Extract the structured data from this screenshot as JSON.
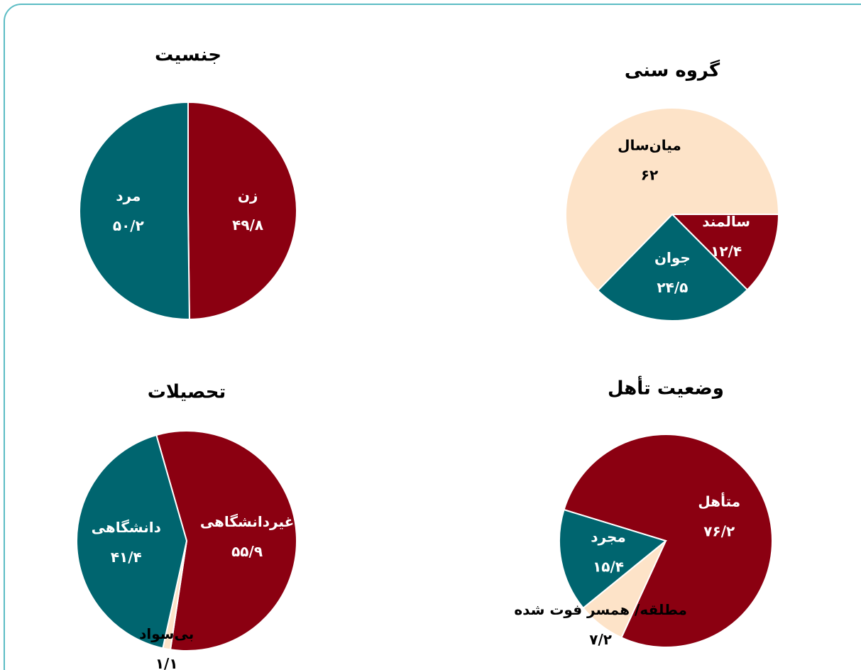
{
  "chart_data": [
    {
      "type": "pie",
      "title": "جنسیت",
      "categories": [
        "زن",
        "مرد"
      ],
      "values": [
        49.8,
        50.2
      ],
      "value_labels": [
        "۴۹/۸",
        "۵۰/۲"
      ],
      "colors": [
        "#8b0011",
        "#00656f"
      ]
    },
    {
      "type": "pie",
      "title": "گروه سنی",
      "categories": [
        "سالمند",
        "جوان",
        "میان‌سال"
      ],
      "values": [
        12.4,
        24.5,
        62
      ],
      "value_labels": [
        "۱۲/۴",
        "۲۴/۵",
        "۶۲"
      ],
      "colors": [
        "#8b0011",
        "#00656f",
        "#fde3c8"
      ]
    },
    {
      "type": "pie",
      "title": "تحصیلات",
      "categories": [
        "غیردانشگاهی",
        "بی‌سواد",
        "دانشگاهی"
      ],
      "values": [
        55.9,
        1.1,
        41.4
      ],
      "value_labels": [
        "۵۵/۹",
        "۱/۱",
        "۴۱/۴"
      ],
      "colors": [
        "#8b0011",
        "#fde3c8",
        "#00656f"
      ]
    },
    {
      "type": "pie",
      "title": "وضعیت تأهل",
      "categories": [
        "متأهل",
        "مطلقه/ همسر فوت شده",
        "مجرد"
      ],
      "values": [
        76.2,
        7.2,
        15.4
      ],
      "value_labels": [
        "۷۶/۲",
        "۷/۲",
        "۱۵/۴"
      ],
      "colors": [
        "#8b0011",
        "#fde3c8",
        "#00656f"
      ]
    }
  ]
}
